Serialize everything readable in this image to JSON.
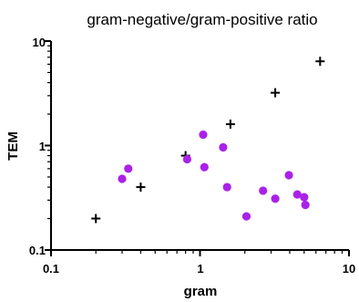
{
  "chart_data": {
    "type": "scatter",
    "title": "gram-negative/gram-positive ratio",
    "xlabel": "gram",
    "ylabel": "TEM",
    "xscale": "log",
    "yscale": "log",
    "xlim": [
      0.1,
      10
    ],
    "ylim": [
      0.1,
      10
    ],
    "x_ticks": [
      "0.1",
      "1",
      "10"
    ],
    "y_ticks": [
      "0.1",
      "1",
      "10"
    ],
    "grid": false,
    "series": [
      {
        "marker": "plus",
        "color": "#000000",
        "points": [
          {
            "x": 0.2,
            "y": 0.2
          },
          {
            "x": 0.4,
            "y": 0.4
          },
          {
            "x": 0.8,
            "y": 0.8
          },
          {
            "x": 1.6,
            "y": 1.6
          },
          {
            "x": 3.2,
            "y": 3.2
          },
          {
            "x": 6.4,
            "y": 6.4
          }
        ]
      },
      {
        "marker": "circle",
        "color": "#aa22e8",
        "points": [
          {
            "x": 0.3,
            "y": 0.48
          },
          {
            "x": 0.33,
            "y": 0.6
          },
          {
            "x": 0.82,
            "y": 0.74
          },
          {
            "x": 1.05,
            "y": 1.27
          },
          {
            "x": 1.07,
            "y": 0.62
          },
          {
            "x": 1.43,
            "y": 0.96
          },
          {
            "x": 1.52,
            "y": 0.4
          },
          {
            "x": 2.05,
            "y": 0.21
          },
          {
            "x": 2.65,
            "y": 0.37
          },
          {
            "x": 3.2,
            "y": 0.31
          },
          {
            "x": 3.95,
            "y": 0.52
          },
          {
            "x": 4.5,
            "y": 0.34
          },
          {
            "x": 5.0,
            "y": 0.32
          },
          {
            "x": 5.1,
            "y": 0.27
          }
        ]
      }
    ]
  }
}
